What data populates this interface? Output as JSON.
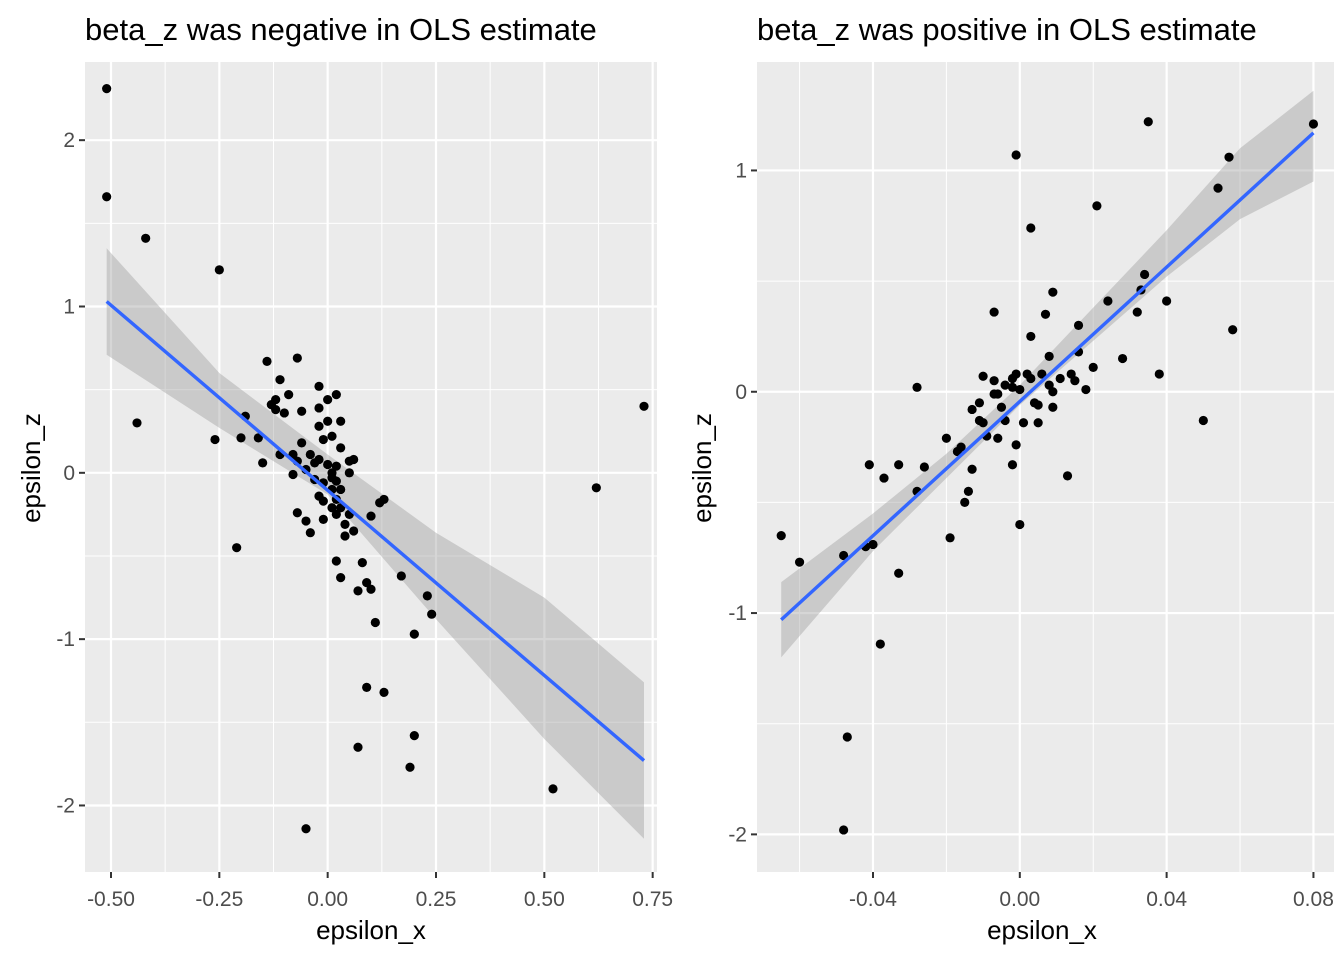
{
  "chart_data": [
    {
      "type": "scatter",
      "title": "beta_z was negative in OLS estimate",
      "xlabel": "epsilon_x",
      "ylabel": "epsilon_z",
      "xlim": [
        -0.56,
        0.76
      ],
      "ylim": [
        -2.4,
        2.47
      ],
      "xticks": [
        -0.5,
        -0.25,
        0.0,
        0.25,
        0.5,
        0.75
      ],
      "xtick_labels": [
        "-0.50",
        "-0.25",
        "0.00",
        "0.25",
        "0.50",
        "0.75"
      ],
      "yticks": [
        -2,
        -1,
        0,
        1,
        2
      ],
      "ytick_labels": [
        "-2",
        "-1",
        "0",
        "1",
        "2"
      ],
      "grid": true,
      "colors": {
        "points": "#000000",
        "fit_line": "#3366ff",
        "ribbon": "#999999",
        "panel": "#ebebeb"
      },
      "points": [
        [
          -0.51,
          2.31
        ],
        [
          -0.51,
          1.66
        ],
        [
          -0.42,
          1.41
        ],
        [
          -0.44,
          0.3
        ],
        [
          -0.25,
          1.22
        ],
        [
          -0.26,
          0.2
        ],
        [
          -0.21,
          -0.45
        ],
        [
          -0.2,
          0.21
        ],
        [
          -0.19,
          0.34
        ],
        [
          -0.16,
          0.21
        ],
        [
          -0.15,
          0.06
        ],
        [
          -0.14,
          0.67
        ],
        [
          -0.13,
          0.41
        ],
        [
          -0.12,
          0.44
        ],
        [
          -0.12,
          0.38
        ],
        [
          -0.11,
          0.56
        ],
        [
          -0.1,
          0.36
        ],
        [
          -0.11,
          0.11
        ],
        [
          -0.09,
          0.47
        ],
        [
          -0.07,
          0.69
        ],
        [
          -0.08,
          -0.01
        ],
        [
          -0.07,
          0.07
        ],
        [
          -0.08,
          0.11
        ],
        [
          -0.06,
          0.37
        ],
        [
          -0.06,
          0.18
        ],
        [
          -0.05,
          0.02
        ],
        [
          -0.07,
          -0.24
        ],
        [
          -0.05,
          -0.29
        ],
        [
          -0.04,
          -0.36
        ],
        [
          -0.04,
          0.11
        ],
        [
          -0.03,
          0.06
        ],
        [
          -0.03,
          -0.04
        ],
        [
          -0.02,
          0.52
        ],
        [
          -0.02,
          0.39
        ],
        [
          -0.02,
          0.28
        ],
        [
          -0.01,
          0.2
        ],
        [
          -0.02,
          0.08
        ],
        [
          -0.01,
          -0.06
        ],
        [
          -0.02,
          -0.14
        ],
        [
          -0.01,
          -0.17
        ],
        [
          -0.01,
          -0.28
        ],
        [
          0.0,
          0.44
        ],
        [
          0.0,
          0.31
        ],
        [
          0.01,
          0.22
        ],
        [
          0.0,
          0.05
        ],
        [
          0.01,
          0.0
        ],
        [
          0.01,
          -0.03
        ],
        [
          0.01,
          -0.1
        ],
        [
          0.01,
          -0.21
        ],
        [
          0.02,
          0.47
        ],
        [
          0.02,
          0.04
        ],
        [
          0.02,
          -0.05
        ],
        [
          0.02,
          -0.16
        ],
        [
          0.02,
          -0.25
        ],
        [
          0.03,
          0.31
        ],
        [
          0.03,
          0.15
        ],
        [
          0.03,
          -0.1
        ],
        [
          0.03,
          -0.21
        ],
        [
          0.04,
          -0.31
        ],
        [
          0.04,
          -0.38
        ],
        [
          0.05,
          0.07
        ],
        [
          0.05,
          -0.0
        ],
        [
          0.05,
          -0.25
        ],
        [
          0.06,
          0.08
        ],
        [
          0.06,
          -0.35
        ],
        [
          0.02,
          -0.53
        ],
        [
          0.03,
          -0.63
        ],
        [
          0.07,
          -0.71
        ],
        [
          0.08,
          -0.54
        ],
        [
          0.09,
          -0.66
        ],
        [
          0.1,
          -0.7
        ],
        [
          0.1,
          -0.26
        ],
        [
          0.11,
          -0.9
        ],
        [
          0.12,
          -0.18
        ],
        [
          0.13,
          -0.16
        ],
        [
          0.17,
          -0.62
        ],
        [
          0.2,
          -0.97
        ],
        [
          0.23,
          -0.74
        ],
        [
          0.24,
          -0.85
        ],
        [
          0.09,
          -1.29
        ],
        [
          0.13,
          -1.32
        ],
        [
          0.07,
          -1.65
        ],
        [
          0.2,
          -1.58
        ],
        [
          0.19,
          -1.77
        ],
        [
          -0.05,
          -2.14
        ],
        [
          0.52,
          -1.9
        ],
        [
          0.62,
          -0.09
        ],
        [
          0.73,
          0.4
        ]
      ],
      "fit_line": [
        [
          -0.51,
          1.03
        ],
        [
          0.73,
          -1.73
        ]
      ],
      "ribbon": [
        [
          -0.51,
          0.71,
          1.35
        ],
        [
          -0.25,
          0.27,
          0.6
        ],
        [
          0.0,
          -0.13,
          0.11
        ],
        [
          0.25,
          -0.88,
          -0.36
        ],
        [
          0.5,
          -1.6,
          -0.75
        ],
        [
          0.73,
          -2.2,
          -1.26
        ]
      ]
    },
    {
      "type": "scatter",
      "title": "beta_z was positive in OLS estimate",
      "xlabel": "epsilon_x",
      "ylabel": "epsilon_z",
      "xlim": [
        -0.0716,
        0.0856
      ],
      "ylim": [
        -2.17,
        1.49
      ],
      "xticks": [
        -0.04,
        0.0,
        0.04,
        0.08
      ],
      "xtick_labels": [
        "-0.04",
        "0.00",
        "0.04",
        "0.08"
      ],
      "yticks": [
        -2,
        -1,
        0,
        1
      ],
      "ytick_labels": [
        "-2",
        "-1",
        "0",
        "1"
      ],
      "grid": true,
      "colors": {
        "points": "#000000",
        "fit_line": "#3366ff",
        "ribbon": "#999999",
        "panel": "#ebebeb"
      },
      "points": [
        [
          -0.065,
          -0.65
        ],
        [
          -0.06,
          -0.77
        ],
        [
          -0.048,
          -0.74
        ],
        [
          -0.042,
          -0.7
        ],
        [
          -0.04,
          -0.69
        ],
        [
          -0.041,
          -0.33
        ],
        [
          -0.037,
          -0.39
        ],
        [
          -0.033,
          -0.33
        ],
        [
          -0.033,
          -0.82
        ],
        [
          -0.038,
          -1.14
        ],
        [
          -0.047,
          -1.56
        ],
        [
          -0.048,
          -1.98
        ],
        [
          -0.028,
          0.02
        ],
        [
          -0.026,
          -0.34
        ],
        [
          -0.028,
          -0.45
        ],
        [
          -0.02,
          -0.21
        ],
        [
          -0.019,
          -0.66
        ],
        [
          -0.017,
          -0.27
        ],
        [
          -0.016,
          -0.25
        ],
        [
          -0.015,
          -0.5
        ],
        [
          -0.014,
          -0.45
        ],
        [
          -0.013,
          -0.35
        ],
        [
          -0.013,
          -0.08
        ],
        [
          -0.011,
          -0.05
        ],
        [
          -0.011,
          -0.13
        ],
        [
          -0.01,
          -0.14
        ],
        [
          -0.01,
          0.07
        ],
        [
          -0.009,
          -0.2
        ],
        [
          -0.007,
          0.05
        ],
        [
          -0.007,
          -0.01
        ],
        [
          -0.006,
          -0.01
        ],
        [
          -0.006,
          -0.21
        ],
        [
          -0.005,
          -0.07
        ],
        [
          -0.004,
          0.03
        ],
        [
          -0.004,
          -0.13
        ],
        [
          -0.002,
          0.06
        ],
        [
          -0.002,
          -0.33
        ],
        [
          -0.007,
          0.36
        ],
        [
          -0.002,
          0.02
        ],
        [
          -0.001,
          0.08
        ],
        [
          -0.001,
          -0.24
        ],
        [
          0.0,
          -0.6
        ],
        [
          0.0,
          0.01
        ],
        [
          0.001,
          -0.14
        ],
        [
          0.002,
          0.08
        ],
        [
          0.003,
          0.25
        ],
        [
          0.003,
          0.06
        ],
        [
          0.004,
          -0.05
        ],
        [
          0.005,
          -0.06
        ],
        [
          0.005,
          -0.14
        ],
        [
          0.006,
          0.08
        ],
        [
          0.007,
          0.35
        ],
        [
          0.008,
          0.16
        ],
        [
          0.008,
          0.03
        ],
        [
          0.009,
          0.0
        ],
        [
          0.009,
          0.45
        ],
        [
          0.009,
          -0.07
        ],
        [
          0.011,
          0.06
        ],
        [
          0.013,
          -0.38
        ],
        [
          0.014,
          0.08
        ],
        [
          0.015,
          0.05
        ],
        [
          0.016,
          0.3
        ],
        [
          0.016,
          0.18
        ],
        [
          0.018,
          0.01
        ],
        [
          0.02,
          0.11
        ],
        [
          0.003,
          0.74
        ],
        [
          -0.001,
          1.07
        ],
        [
          0.021,
          0.84
        ],
        [
          0.024,
          0.41
        ],
        [
          0.028,
          0.15
        ],
        [
          0.032,
          0.36
        ],
        [
          0.033,
          0.46
        ],
        [
          0.034,
          0.53
        ],
        [
          0.035,
          1.22
        ],
        [
          0.038,
          0.08
        ],
        [
          0.04,
          0.41
        ],
        [
          0.05,
          -0.13
        ],
        [
          0.054,
          0.92
        ],
        [
          0.057,
          1.06
        ],
        [
          0.058,
          0.28
        ],
        [
          0.08,
          1.21
        ]
      ],
      "fit_line": [
        [
          -0.065,
          -1.03
        ],
        [
          0.08,
          1.17
        ]
      ],
      "ribbon": [
        [
          -0.065,
          -1.2,
          -0.86
        ],
        [
          -0.04,
          -0.72,
          -0.55
        ],
        [
          -0.02,
          -0.39,
          -0.28
        ],
        [
          0.0,
          -0.06,
          0.03
        ],
        [
          0.02,
          0.23,
          0.38
        ],
        [
          0.04,
          0.52,
          0.73
        ],
        [
          0.06,
          0.78,
          1.1
        ],
        [
          0.08,
          0.95,
          1.36
        ]
      ]
    }
  ]
}
